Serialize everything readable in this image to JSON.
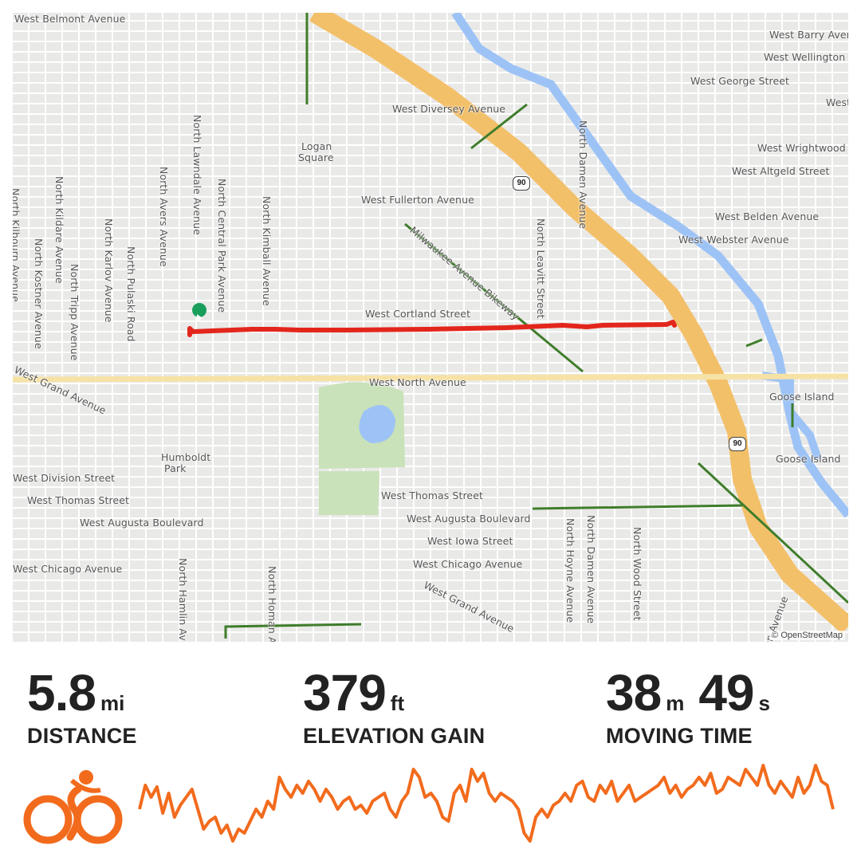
{
  "map": {
    "attribution": "© OpenStreetMap",
    "highway_shield": "90",
    "labels": [
      "West Belmont Avenue",
      "West Barry Avenue",
      "West Wellington",
      "West George Street",
      "West Div",
      "West Diversey Avenue",
      "Logan",
      "Square",
      "West Wrightwood",
      "West Altgeld Street",
      "West Fullerton Avenue",
      "West Belden Avenue",
      "West Webster Avenue",
      "Milwaukee Avenue Bikeway",
      "West Cortland Street",
      "West North Avenue",
      "Goose Island",
      "Goose Island",
      "West Grand Avenue",
      "Humboldt",
      "Park",
      "West Division Street",
      "West Thomas Street",
      "West Augusta Boulevard",
      "West Thomas Street",
      "West Augusta Boulevard",
      "West Iowa Street",
      "West Chicago Avenue",
      "West Chicago Avenue",
      "West Grand Avenue"
    ],
    "vlabels": [
      "North Kilbourn Avenue",
      "North Kildare Avenue",
      "North Kostner Avenue",
      "North Tripp Avenue",
      "North Karlov Avenue",
      "North Pulaski Road",
      "North Avers Avenue",
      "North Lawndale Avenue",
      "North Central Park Avenue",
      "North Kimball Avenue",
      "North Leavitt Street",
      "North Damen Avenue",
      "North Hoyne Avenue",
      "North Damen Avenue",
      "North Wood Street",
      "North Hamlin Av",
      "North Homan Av",
      "den Avenue"
    ],
    "colors": {
      "route": "#e3261c",
      "start_marker": "#1a9e5c",
      "highway": "#f3c06a",
      "water": "#9dc3f6",
      "park": "#c9e2b9",
      "bike_lane": "#3f7d2b"
    }
  },
  "stats": {
    "distance": {
      "value": "5.8",
      "unit": "mi",
      "label": "DISTANCE"
    },
    "elevation": {
      "value": "379",
      "unit": "ft",
      "label": "ELEVATION GAIN"
    },
    "moving_time": {
      "minutes": "38",
      "m_unit": "m",
      "seconds": "49",
      "s_unit": "s",
      "label": "MOVING TIME"
    }
  },
  "activity": {
    "type_icon": "cycling-icon",
    "accent": "#f26b1d"
  }
}
